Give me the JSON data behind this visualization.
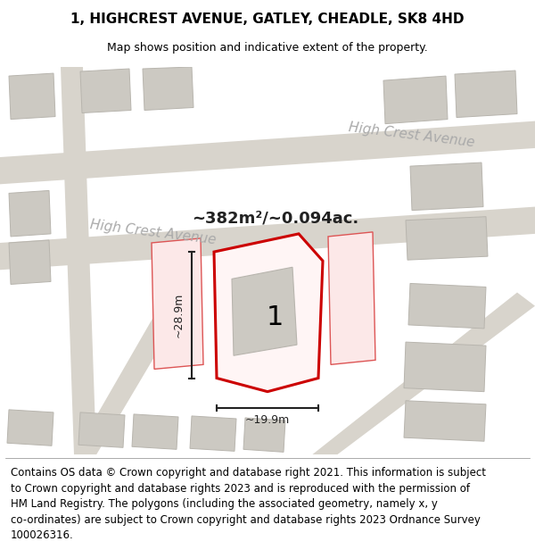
{
  "title": "1, HIGHCREST AVENUE, GATLEY, CHEADLE, SK8 4HD",
  "subtitle": "Map shows position and indicative extent of the property.",
  "footer_text": "Contains OS data © Crown copyright and database right 2021. This information is subject\nto Crown copyright and database rights 2023 and is reproduced with the permission of\nHM Land Registry. The polygons (including the associated geometry, namely x, y\nco-ordinates) are subject to Crown copyright and database rights 2023 Ordnance Survey\n100026316.",
  "area_text": "~382m²/~0.094ac.",
  "street_name_1": "High Crest Avenue",
  "street_name_2": "High Crest Avenue",
  "label_1": "1",
  "dim_width": "~19.9m",
  "dim_height": "~28.9m",
  "map_bg": "#e8e4de",
  "road_color": "#d8d4cc",
  "building_fill": "#ccc9c2",
  "building_edge": "#b8b5ae",
  "red_outline": "#cc0000",
  "red_fill": "#fce8e8",
  "red_edge": "#dd5555",
  "dim_color": "#222222",
  "street_color": "#aaaaaa",
  "footer_fontsize": 8.5,
  "title_fontsize": 11,
  "subtitle_fontsize": 9
}
